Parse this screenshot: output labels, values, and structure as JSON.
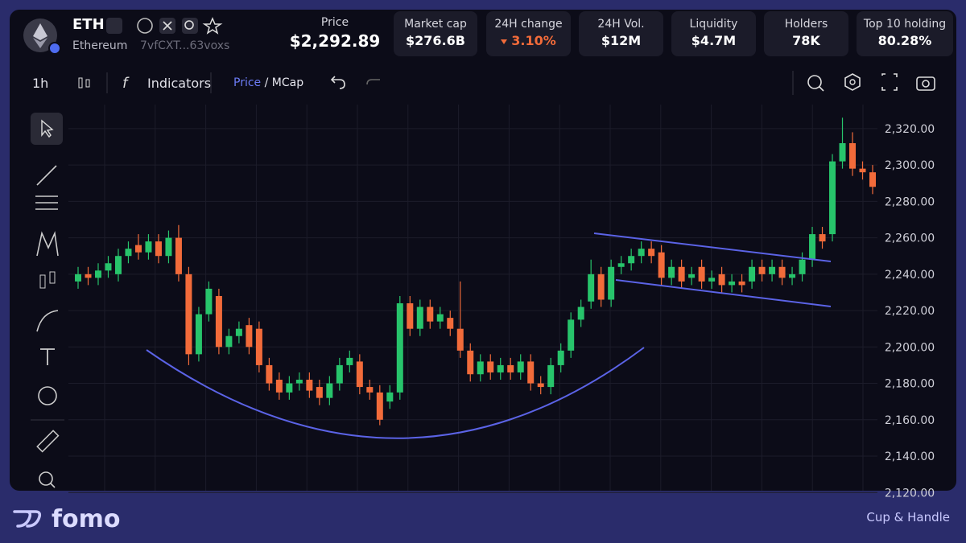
{
  "header": {
    "symbol": "ETH",
    "name": "Ethereum",
    "address": "7vfCXT...63voxs",
    "stats": [
      {
        "label": "Price",
        "value": "$2,292.89"
      },
      {
        "label": "Market cap",
        "value": "$276.6B"
      },
      {
        "label": "24H change",
        "value": "3.10%"
      },
      {
        "label": "24H Vol.",
        "value": "$12M"
      },
      {
        "label": "Liquidity",
        "value": "$4.7M"
      },
      {
        "label": "Holders",
        "value": "78K"
      },
      {
        "label": "Top 10 holding",
        "value": "80.28%"
      }
    ]
  },
  "toolbar": {
    "interval": "1h",
    "indicators": "Indicators",
    "price": "Price",
    "mcap": "/ MCap"
  },
  "chart_data": {
    "type": "candlestick",
    "up_color": "#27c46b",
    "down_color": "#f26b3a",
    "grid": true,
    "ylim": [
      2121,
      2331
    ],
    "yticks": [
      {
        "value": 2120,
        "label": "2,120.00"
      },
      {
        "value": 2140,
        "label": "2,140.00"
      },
      {
        "value": 2160,
        "label": "2,160.00"
      },
      {
        "value": 2180,
        "label": "2,180.00"
      },
      {
        "value": 2200,
        "label": "2,200.00"
      },
      {
        "value": 2220,
        "label": "2,220.00"
      },
      {
        "value": 2240,
        "label": "2,240.00"
      },
      {
        "value": 2260,
        "label": "2,260.00"
      },
      {
        "value": 2280,
        "label": "2,280.00"
      },
      {
        "value": 2300,
        "label": "2,300.00"
      },
      {
        "value": 2320,
        "label": "2,320.00"
      }
    ],
    "series": [
      {
        "open": [
          2236,
          2240,
          2238,
          2242,
          2240,
          2250,
          2256,
          2252,
          2258,
          2250,
          2260,
          2240,
          2196,
          2218,
          2228,
          2200,
          2206,
          2212,
          2210,
          2190,
          2182,
          2175,
          2180,
          2182,
          2178,
          2172,
          2180,
          2190,
          2192,
          2178,
          2175,
          2170,
          2175,
          2224,
          2210,
          2222,
          2214,
          2216,
          2210,
          2198,
          2185,
          2192,
          2186,
          2190,
          2186,
          2192,
          2180,
          2178,
          2190,
          2198,
          2215,
          2225,
          2240,
          2226,
          2244,
          2246,
          2250,
          2254,
          2252,
          2238,
          2244,
          2238,
          2244,
          2236,
          2240,
          2234,
          2236,
          2236,
          2244,
          2240,
          2244,
          2238,
          2240,
          2248,
          2262,
          2262,
          2302,
          2312,
          2298,
          2296
        ],
        "high": [
          2244,
          2244,
          2246,
          2250,
          2254,
          2258,
          2262,
          2262,
          2262,
          2264,
          2267,
          2244,
          2222,
          2236,
          2232,
          2210,
          2214,
          2216,
          2214,
          2194,
          2186,
          2184,
          2186,
          2186,
          2182,
          2184,
          2194,
          2198,
          2196,
          2182,
          2179,
          2179,
          2228,
          2228,
          2226,
          2226,
          2222,
          2220,
          2236,
          2202,
          2196,
          2196,
          2194,
          2194,
          2196,
          2196,
          2184,
          2194,
          2202,
          2219,
          2226,
          2248,
          2244,
          2248,
          2250,
          2254,
          2258,
          2258,
          2256,
          2248,
          2248,
          2244,
          2248,
          2242,
          2244,
          2240,
          2240,
          2248,
          2248,
          2248,
          2248,
          2244,
          2252,
          2266,
          2266,
          2306,
          2326,
          2318,
          2302,
          2300
        ],
        "low": [
          2232,
          2234,
          2234,
          2238,
          2236,
          2246,
          2248,
          2248,
          2246,
          2246,
          2236,
          2190,
          2192,
          2214,
          2196,
          2196,
          2202,
          2196,
          2186,
          2176,
          2171,
          2171,
          2176,
          2172,
          2168,
          2168,
          2176,
          2186,
          2174,
          2171,
          2157,
          2166,
          2171,
          2206,
          2206,
          2210,
          2210,
          2206,
          2194,
          2181,
          2181,
          2182,
          2182,
          2182,
          2182,
          2176,
          2174,
          2174,
          2186,
          2194,
          2211,
          2221,
          2222,
          2222,
          2240,
          2242,
          2246,
          2246,
          2234,
          2234,
          2232,
          2234,
          2232,
          2232,
          2230,
          2230,
          2230,
          2232,
          2236,
          2236,
          2234,
          2234,
          2236,
          2244,
          2254,
          2258,
          2298,
          2294,
          2292,
          2284
        ],
        "close": [
          2240,
          2238,
          2242,
          2246,
          2250,
          2254,
          2252,
          2258,
          2250,
          2260,
          2240,
          2196,
          2218,
          2232,
          2200,
          2206,
          2210,
          2200,
          2190,
          2180,
          2175,
          2180,
          2182,
          2176,
          2172,
          2180,
          2190,
          2194,
          2178,
          2175,
          2160,
          2175,
          2224,
          2210,
          2222,
          2214,
          2218,
          2210,
          2198,
          2185,
          2192,
          2186,
          2190,
          2186,
          2192,
          2180,
          2178,
          2190,
          2198,
          2215,
          2222,
          2240,
          2226,
          2244,
          2246,
          2250,
          2254,
          2250,
          2238,
          2244,
          2236,
          2240,
          2236,
          2238,
          2234,
          2236,
          2234,
          2244,
          2240,
          2244,
          2238,
          2240,
          2248,
          2262,
          2258,
          2302,
          2312,
          2298,
          2296,
          2288
        ]
      }
    ]
  },
  "footer": {
    "brand": "fomo",
    "pattern": "Cup & Handle"
  }
}
